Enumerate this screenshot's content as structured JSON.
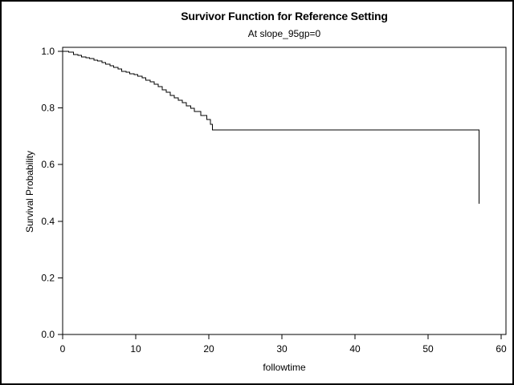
{
  "page": {
    "background_color": "#ffffff",
    "foreground_color": "#000000",
    "border_color": "#000000"
  },
  "chart_data": {
    "type": "line",
    "variant": "step-survival-curve",
    "title": "Survivor Function for Reference Setting",
    "subtitle": "At slope_95gp=0",
    "xlabel": "followtime",
    "ylabel": "Survival Probability",
    "xlim": [
      0,
      60
    ],
    "ylim": [
      0.0,
      1.0
    ],
    "xticks": {
      "values": [
        0,
        10,
        20,
        30,
        40,
        50,
        60
      ],
      "labels": [
        "0",
        "10",
        "20",
        "30",
        "40",
        "50",
        "60"
      ]
    },
    "yticks": {
      "values": [
        1.0,
        0.8,
        0.6,
        0.4,
        0.2,
        0.0
      ],
      "labels": [
        "1.0",
        "0.8",
        "0.6",
        "0.4",
        "0.2",
        "0.0"
      ]
    },
    "grid": false,
    "legend": false,
    "frame": true,
    "line_color": "#000000",
    "series": [
      {
        "name": "Survival Probability",
        "points": [
          [
            0.0,
            1.0
          ],
          [
            0.8,
            0.997
          ],
          [
            1.5,
            0.989
          ],
          [
            2.1,
            0.986
          ],
          [
            2.6,
            0.98
          ],
          [
            3.2,
            0.977
          ],
          [
            3.7,
            0.975
          ],
          [
            4.3,
            0.969
          ],
          [
            4.8,
            0.966
          ],
          [
            5.4,
            0.96
          ],
          [
            5.9,
            0.955
          ],
          [
            6.5,
            0.949
          ],
          [
            7.0,
            0.943
          ],
          [
            7.6,
            0.938
          ],
          [
            8.1,
            0.929
          ],
          [
            8.7,
            0.926
          ],
          [
            9.2,
            0.921
          ],
          [
            9.8,
            0.918
          ],
          [
            10.3,
            0.912
          ],
          [
            10.9,
            0.906
          ],
          [
            11.4,
            0.898
          ],
          [
            12.0,
            0.892
          ],
          [
            12.5,
            0.884
          ],
          [
            13.1,
            0.875
          ],
          [
            13.6,
            0.864
          ],
          [
            14.2,
            0.856
          ],
          [
            14.7,
            0.844
          ],
          [
            15.3,
            0.836
          ],
          [
            15.8,
            0.827
          ],
          [
            16.4,
            0.819
          ],
          [
            16.9,
            0.807
          ],
          [
            17.5,
            0.799
          ],
          [
            18.0,
            0.787
          ],
          [
            18.9,
            0.773
          ],
          [
            19.7,
            0.759
          ],
          [
            20.2,
            0.742
          ],
          [
            20.5,
            0.722
          ],
          [
            57.0,
            0.722
          ],
          [
            57.0,
            0.462
          ]
        ]
      }
    ]
  }
}
